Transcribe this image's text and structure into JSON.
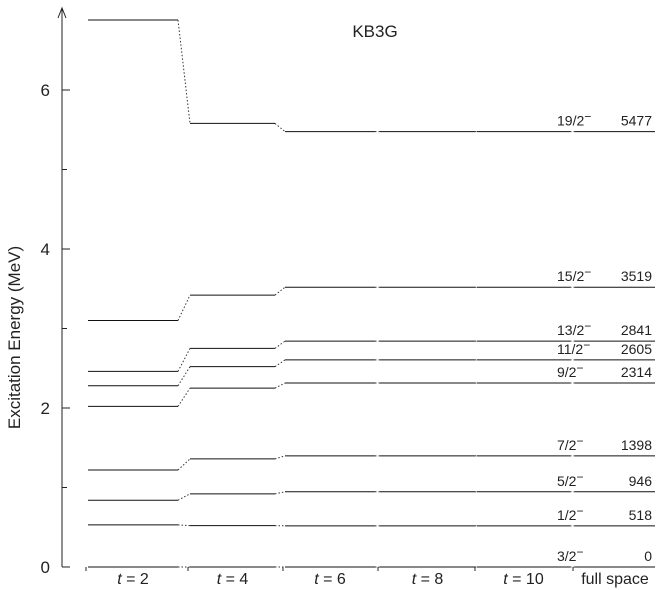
{
  "chart_data": {
    "type": "level-scheme",
    "title": "KB3G",
    "ylabel": "Excitation Energy (MeV)",
    "ylim": [
      0,
      7
    ],
    "yticks": [
      0,
      2,
      4,
      6
    ],
    "columns": [
      {
        "t": "2",
        "label": "= 2"
      },
      {
        "t": "4",
        "label": "= 4"
      },
      {
        "t": "6",
        "label": "= 6"
      },
      {
        "t": "8",
        "label": "= 8"
      },
      {
        "t": "10",
        "label": "= 10"
      },
      {
        "t": null,
        "label": "full space"
      }
    ],
    "levels": [
      {
        "spin": "3/2",
        "parity": "−",
        "energy_keV": "0",
        "values": [
          0.0,
          0.0,
          0.0,
          0.0,
          0.0,
          0.0
        ]
      },
      {
        "spin": "1/2",
        "parity": "−",
        "energy_keV": "518",
        "values": [
          0.53,
          0.52,
          0.518,
          0.518,
          0.518,
          0.518
        ]
      },
      {
        "spin": "5/2",
        "parity": "−",
        "energy_keV": "946",
        "values": [
          0.84,
          0.92,
          0.946,
          0.946,
          0.946,
          0.946
        ]
      },
      {
        "spin": "7/2",
        "parity": "−",
        "energy_keV": "1398",
        "values": [
          1.22,
          1.36,
          1.398,
          1.398,
          1.398,
          1.398
        ]
      },
      {
        "spin": "9/2",
        "parity": "−",
        "energy_keV": "2314",
        "values": [
          2.02,
          2.25,
          2.314,
          2.314,
          2.314,
          2.314
        ]
      },
      {
        "spin": "11/2",
        "parity": "−",
        "energy_keV": "2605",
        "values": [
          2.28,
          2.52,
          2.605,
          2.605,
          2.605,
          2.605
        ]
      },
      {
        "spin": "13/2",
        "parity": "−",
        "energy_keV": "2841",
        "values": [
          2.46,
          2.75,
          2.841,
          2.841,
          2.841,
          2.841
        ]
      },
      {
        "spin": "15/2",
        "parity": "−",
        "energy_keV": "3519",
        "values": [
          3.1,
          3.42,
          3.519,
          3.519,
          3.519,
          3.519
        ]
      },
      {
        "spin": "19/2",
        "parity": "−",
        "energy_keV": "5477",
        "values": [
          6.88,
          5.58,
          5.477,
          5.477,
          5.477,
          5.477
        ]
      }
    ]
  }
}
